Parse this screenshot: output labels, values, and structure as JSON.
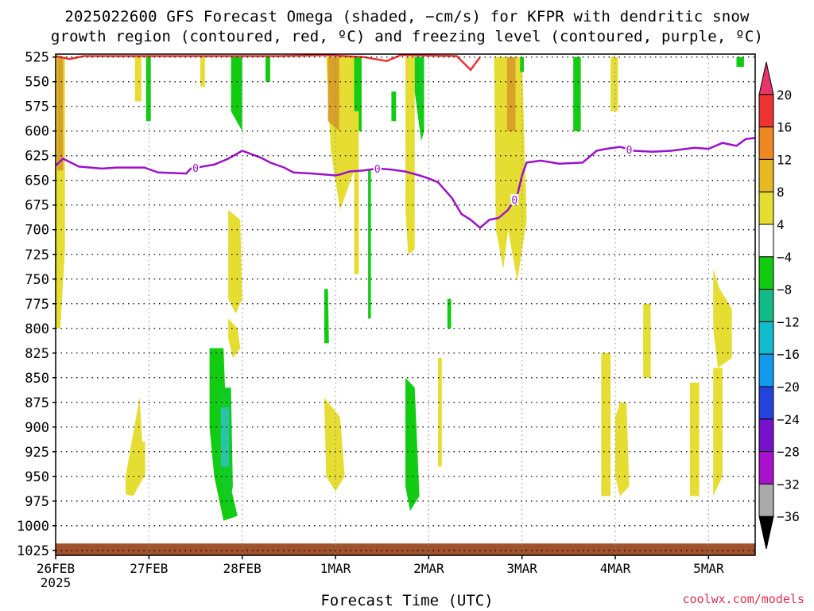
{
  "title_line1": "2025022600 GFS Forecast Omega (shaded, −cm/s) for KFPR with dendritic snow",
  "title_line2": "growth region (contoured, red, ºC) and freezing level (contoured, purple, ºC)",
  "credit": "coolwx.com/models",
  "chart_data": {
    "type": "heatmap",
    "xlabel": "Forecast Time (UTC)",
    "ylabel": "",
    "x_ticks": [
      "26FEB",
      "27FEB",
      "28FEB",
      "1MAR",
      "2MAR",
      "3MAR",
      "4MAR",
      "5MAR"
    ],
    "x_first_tick_year": "2025",
    "x_range_days": [
      0,
      7.5
    ],
    "y_ticks": [
      525,
      550,
      575,
      600,
      625,
      650,
      675,
      700,
      725,
      750,
      775,
      800,
      825,
      850,
      875,
      900,
      925,
      950,
      975,
      1000,
      1025
    ],
    "y_range_hpa": [
      522,
      1030
    ],
    "grid": true,
    "colorbar": {
      "levels": [
        20,
        16,
        12,
        8,
        4,
        -4,
        -8,
        -12,
        -16,
        -20,
        -24,
        -28,
        -32,
        -36
      ],
      "colors": [
        "#e8336b",
        "#ee3333",
        "#ee8822",
        "#e6b822",
        "#e6dd33",
        "#ffffff",
        "#11cc11",
        "#11bb88",
        "#11bbcc",
        "#1199ee",
        "#2244dd",
        "#7711cc",
        "#aa11cc",
        "#aaaaaa",
        "#000000"
      ]
    },
    "freezing_level": {
      "label": "0",
      "color": "#9911cc",
      "points": [
        [
          0,
          635
        ],
        [
          0.08,
          628
        ],
        [
          0.25,
          636
        ],
        [
          0.5,
          638
        ],
        [
          0.65,
          637
        ],
        [
          0.95,
          637
        ],
        [
          1.1,
          642
        ],
        [
          1.4,
          643
        ],
        [
          1.45,
          638
        ],
        [
          1.7,
          634
        ],
        [
          1.85,
          628
        ],
        [
          2.0,
          620
        ],
        [
          2.2,
          627
        ],
        [
          2.3,
          632
        ],
        [
          2.45,
          637
        ],
        [
          2.55,
          642
        ],
        [
          2.75,
          643
        ],
        [
          3.0,
          645
        ],
        [
          3.05,
          644
        ],
        [
          3.15,
          641
        ],
        [
          3.3,
          640
        ],
        [
          3.45,
          638
        ],
        [
          3.6,
          639
        ],
        [
          3.75,
          641
        ],
        [
          3.9,
          645
        ],
        [
          4.0,
          648
        ],
        [
          4.1,
          652
        ],
        [
          4.25,
          668
        ],
        [
          4.35,
          684
        ],
        [
          4.45,
          690
        ],
        [
          4.55,
          698
        ],
        [
          4.65,
          690
        ],
        [
          4.75,
          688
        ],
        [
          4.85,
          680
        ],
        [
          4.95,
          665
        ],
        [
          5.0,
          645
        ],
        [
          5.05,
          632
        ],
        [
          5.2,
          630
        ],
        [
          5.4,
          633
        ],
        [
          5.65,
          632
        ],
        [
          5.8,
          620
        ],
        [
          5.9,
          618
        ],
        [
          6.05,
          616
        ],
        [
          6.2,
          620
        ],
        [
          6.4,
          621
        ],
        [
          6.6,
          620
        ],
        [
          6.85,
          617
        ],
        [
          7.0,
          618
        ],
        [
          7.15,
          612
        ],
        [
          7.3,
          615
        ],
        [
          7.4,
          608
        ],
        [
          7.5,
          607
        ]
      ]
    },
    "dgz_contour": {
      "color": "#ee3333",
      "points": [
        [
          0,
          524
        ],
        [
          0.15,
          527
        ],
        [
          0.3,
          524
        ],
        [
          2.4,
          524
        ],
        [
          2.9,
          523
        ],
        [
          3.3,
          525
        ],
        [
          3.55,
          529
        ],
        [
          3.7,
          523
        ],
        [
          4.3,
          524
        ],
        [
          4.45,
          538
        ],
        [
          4.55,
          525
        ]
      ]
    },
    "surface": {
      "color": "#a0522d",
      "pressure_hpa": 1018
    },
    "omega_regions": [
      {
        "level": 4,
        "polygon": [
          [
            0.0,
            525
          ],
          [
            0.1,
            525
          ],
          [
            0.1,
            720
          ],
          [
            0.05,
            800
          ],
          [
            0.0,
            800
          ]
        ]
      },
      {
        "level": 8,
        "polygon": [
          [
            0.02,
            525
          ],
          [
            0.08,
            525
          ],
          [
            0.08,
            640
          ],
          [
            0.02,
            640
          ]
        ]
      },
      {
        "level": 4,
        "polygon": [
          [
            0.85,
            525
          ],
          [
            0.92,
            525
          ],
          [
            0.92,
            570
          ],
          [
            0.85,
            570
          ]
        ]
      },
      {
        "level": 4,
        "polygon": [
          [
            1.55,
            525
          ],
          [
            1.6,
            525
          ],
          [
            1.6,
            555
          ],
          [
            1.55,
            555
          ]
        ]
      },
      {
        "level": -4,
        "polygon": [
          [
            0.97,
            525
          ],
          [
            1.02,
            525
          ],
          [
            1.02,
            590
          ],
          [
            0.97,
            590
          ]
        ]
      },
      {
        "level": -4,
        "polygon": [
          [
            1.88,
            525
          ],
          [
            2.0,
            525
          ],
          [
            2.0,
            600
          ],
          [
            1.88,
            580
          ]
        ]
      },
      {
        "level": 4,
        "polygon": [
          [
            1.85,
            680
          ],
          [
            1.98,
            690
          ],
          [
            2.0,
            770
          ],
          [
            1.93,
            785
          ],
          [
            1.85,
            770
          ]
        ]
      },
      {
        "level": -4,
        "polygon": [
          [
            2.25,
            525
          ],
          [
            2.3,
            525
          ],
          [
            2.3,
            550
          ],
          [
            2.25,
            550
          ]
        ]
      },
      {
        "level": 4,
        "polygon": [
          [
            2.9,
            525
          ],
          [
            3.2,
            525
          ],
          [
            3.2,
            640
          ],
          [
            3.05,
            680
          ],
          [
            2.95,
            620
          ]
        ]
      },
      {
        "level": 8,
        "polygon": [
          [
            2.92,
            525
          ],
          [
            3.04,
            525
          ],
          [
            3.04,
            600
          ],
          [
            2.92,
            590
          ]
        ]
      },
      {
        "level": -4,
        "polygon": [
          [
            3.2,
            525
          ],
          [
            3.28,
            525
          ],
          [
            3.28,
            600
          ],
          [
            3.2,
            600
          ]
        ]
      },
      {
        "level": -4,
        "polygon": [
          [
            3.35,
            640
          ],
          [
            3.38,
            640
          ],
          [
            3.38,
            790
          ],
          [
            3.35,
            790
          ]
        ]
      },
      {
        "level": 4,
        "polygon": [
          [
            3.2,
            580
          ],
          [
            3.25,
            580
          ],
          [
            3.25,
            745
          ],
          [
            3.2,
            745
          ]
        ]
      },
      {
        "level": -4,
        "polygon": [
          [
            3.6,
            560
          ],
          [
            3.65,
            560
          ],
          [
            3.65,
            590
          ],
          [
            3.6,
            590
          ]
        ]
      },
      {
        "level": 4,
        "polygon": [
          [
            3.75,
            525
          ],
          [
            3.85,
            525
          ],
          [
            3.85,
            720
          ],
          [
            3.78,
            725
          ],
          [
            3.75,
            680
          ]
        ]
      },
      {
        "level": -4,
        "polygon": [
          [
            3.85,
            525
          ],
          [
            3.95,
            525
          ],
          [
            3.95,
            600
          ],
          [
            3.92,
            610
          ],
          [
            3.85,
            560
          ]
        ]
      },
      {
        "level": -8,
        "polygon": [
          [
            3.87,
            525
          ],
          [
            3.93,
            525
          ],
          [
            3.93,
            575
          ],
          [
            3.87,
            575
          ]
        ]
      },
      {
        "level": 4,
        "polygon": [
          [
            4.7,
            525
          ],
          [
            4.85,
            525
          ],
          [
            4.85,
            700
          ],
          [
            4.8,
            740
          ],
          [
            4.72,
            700
          ]
        ]
      },
      {
        "level": 4,
        "polygon": [
          [
            4.82,
            525
          ],
          [
            5.0,
            525
          ],
          [
            5.05,
            690
          ],
          [
            4.95,
            752
          ],
          [
            4.85,
            700
          ]
        ]
      },
      {
        "level": 8,
        "polygon": [
          [
            4.84,
            525
          ],
          [
            4.93,
            525
          ],
          [
            4.93,
            600
          ],
          [
            4.84,
            600
          ]
        ]
      },
      {
        "level": -4,
        "polygon": [
          [
            4.98,
            525
          ],
          [
            5.02,
            525
          ],
          [
            5.02,
            540
          ],
          [
            4.98,
            540
          ]
        ]
      },
      {
        "level": -4,
        "polygon": [
          [
            5.55,
            525
          ],
          [
            5.63,
            525
          ],
          [
            5.63,
            600
          ],
          [
            5.55,
            600
          ]
        ]
      },
      {
        "level": 4,
        "polygon": [
          [
            5.95,
            525
          ],
          [
            6.03,
            525
          ],
          [
            6.03,
            580
          ],
          [
            5.95,
            580
          ]
        ]
      },
      {
        "level": -4,
        "polygon": [
          [
            7.3,
            525
          ],
          [
            7.38,
            525
          ],
          [
            7.38,
            535
          ],
          [
            7.3,
            535
          ]
        ]
      },
      {
        "level": 4,
        "polygon": [
          [
            0.75,
            950
          ],
          [
            0.9,
            870
          ],
          [
            0.95,
            950
          ],
          [
            0.83,
            970
          ],
          [
            0.75,
            968
          ]
        ]
      },
      {
        "level": 4,
        "polygon": [
          [
            0.92,
            915
          ],
          [
            0.96,
            915
          ],
          [
            0.96,
            950
          ],
          [
            0.92,
            950
          ]
        ]
      },
      {
        "level": 4,
        "polygon": [
          [
            1.85,
            790
          ],
          [
            1.95,
            800
          ],
          [
            1.98,
            820
          ],
          [
            1.9,
            830
          ],
          [
            1.85,
            810
          ]
        ]
      },
      {
        "level": -4,
        "polygon": [
          [
            1.65,
            820
          ],
          [
            1.8,
            820
          ],
          [
            1.85,
            950
          ],
          [
            1.95,
            990
          ],
          [
            1.8,
            995
          ],
          [
            1.7,
            950
          ],
          [
            1.65,
            900
          ]
        ]
      },
      {
        "level": -8,
        "polygon": [
          [
            1.75,
            860
          ],
          [
            1.88,
            860
          ],
          [
            1.9,
            960
          ],
          [
            1.85,
            985
          ],
          [
            1.76,
            950
          ]
        ]
      },
      {
        "level": -12,
        "polygon": [
          [
            1.77,
            880
          ],
          [
            1.86,
            880
          ],
          [
            1.86,
            940
          ],
          [
            1.77,
            940
          ]
        ]
      },
      {
        "level": 4,
        "polygon": [
          [
            2.88,
            870
          ],
          [
            3.05,
            890
          ],
          [
            3.1,
            950
          ],
          [
            3.0,
            965
          ],
          [
            2.9,
            950
          ]
        ]
      },
      {
        "level": -4,
        "polygon": [
          [
            2.88,
            760
          ],
          [
            2.92,
            760
          ],
          [
            2.93,
            815
          ],
          [
            2.88,
            815
          ]
        ]
      },
      {
        "level": -4,
        "polygon": [
          [
            3.75,
            850
          ],
          [
            3.85,
            860
          ],
          [
            3.9,
            970
          ],
          [
            3.8,
            985
          ],
          [
            3.75,
            960
          ]
        ]
      },
      {
        "level": 4,
        "polygon": [
          [
            4.1,
            830
          ],
          [
            4.14,
            830
          ],
          [
            4.14,
            940
          ],
          [
            4.1,
            940
          ]
        ]
      },
      {
        "level": -4,
        "polygon": [
          [
            4.2,
            770
          ],
          [
            4.24,
            770
          ],
          [
            4.24,
            800
          ],
          [
            4.2,
            800
          ]
        ]
      },
      {
        "level": 4,
        "polygon": [
          [
            5.85,
            825
          ],
          [
            5.95,
            825
          ],
          [
            5.95,
            970
          ],
          [
            5.85,
            970
          ]
        ]
      },
      {
        "level": 4,
        "polygon": [
          [
            6.0,
            890
          ],
          [
            6.05,
            875
          ],
          [
            6.12,
            875
          ],
          [
            6.15,
            960
          ],
          [
            6.05,
            970
          ],
          [
            6.0,
            950
          ]
        ]
      },
      {
        "level": 4,
        "polygon": [
          [
            6.3,
            775
          ],
          [
            6.38,
            775
          ],
          [
            6.38,
            850
          ],
          [
            6.3,
            850
          ]
        ]
      },
      {
        "level": 4,
        "polygon": [
          [
            6.3,
            800
          ],
          [
            6.36,
            800
          ],
          [
            6.36,
            830
          ],
          [
            6.3,
            830
          ]
        ]
      },
      {
        "level": 4,
        "polygon": [
          [
            6.8,
            855
          ],
          [
            6.9,
            855
          ],
          [
            6.9,
            970
          ],
          [
            6.8,
            970
          ]
        ]
      },
      {
        "level": 4,
        "polygon": [
          [
            7.05,
            740
          ],
          [
            7.12,
            760
          ],
          [
            7.25,
            780
          ],
          [
            7.25,
            830
          ],
          [
            7.1,
            840
          ],
          [
            7.05,
            800
          ]
        ]
      },
      {
        "level": 4,
        "polygon": [
          [
            7.05,
            840
          ],
          [
            7.15,
            840
          ],
          [
            7.15,
            950
          ],
          [
            7.05,
            970
          ]
        ]
      }
    ]
  }
}
